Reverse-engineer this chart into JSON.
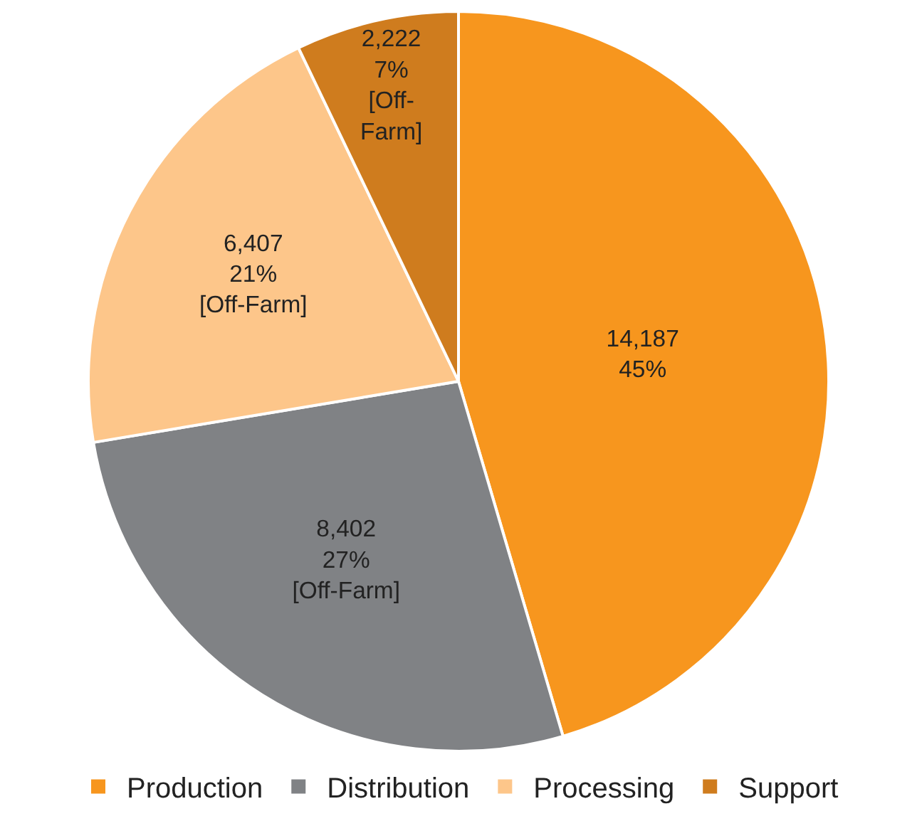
{
  "chart_data": {
    "type": "pie",
    "categories": [
      "Production",
      "Distribution",
      "Processing",
      "Support"
    ],
    "values": [
      14187,
      8402,
      6407,
      2222
    ],
    "colors": [
      "#f7961e",
      "#808285",
      "#fdc68a",
      "#cf7c1e"
    ],
    "value_labels": [
      "14,187\n45%",
      "8,402\n27%\n[Off-Farm]",
      "6,407\n21%\n[Off-Farm]",
      "2,222\n7%\n[Off-\nFarm]"
    ],
    "legend": "bottom"
  }
}
